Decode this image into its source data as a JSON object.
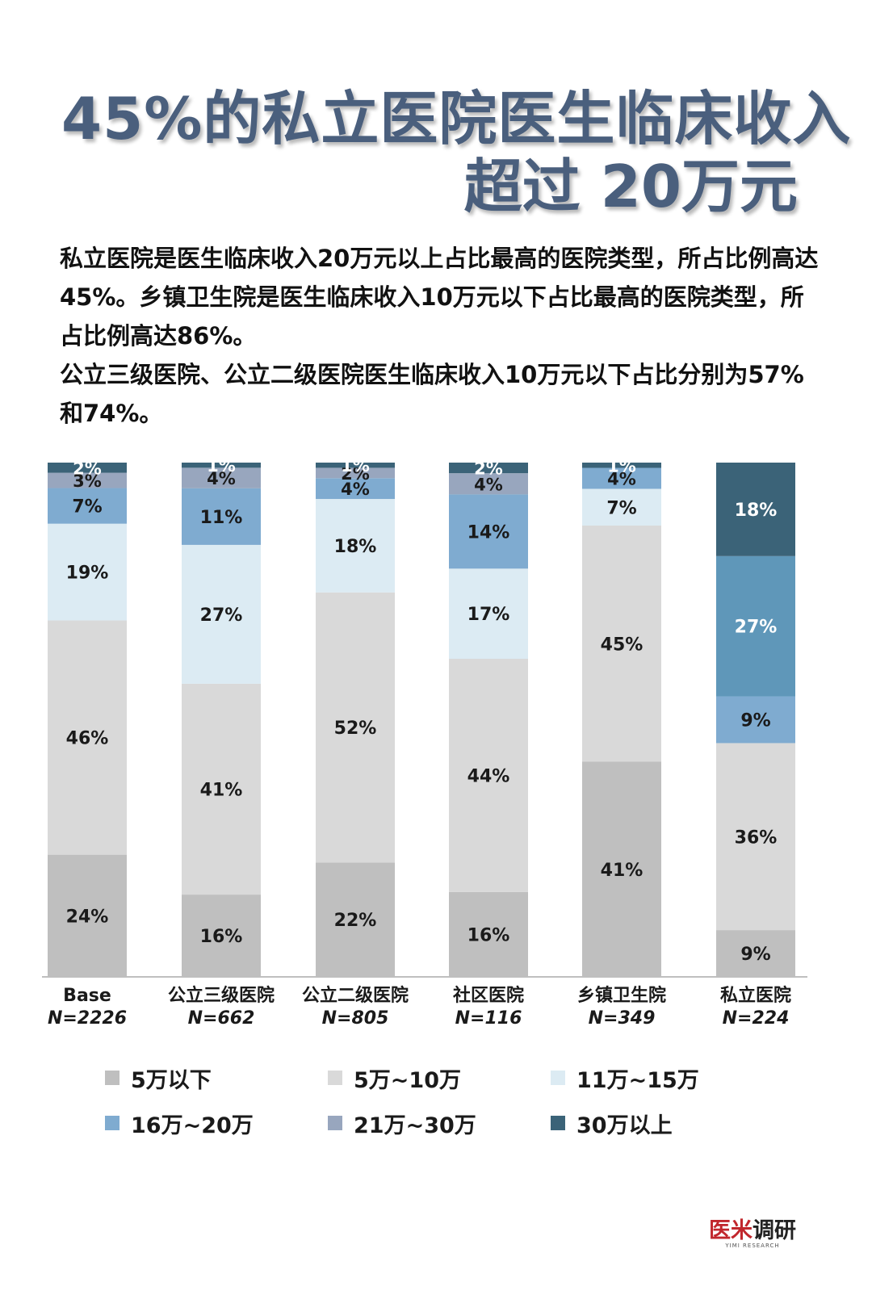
{
  "title": {
    "line1": "45%的私立医院医生临床收入",
    "line2": "超过 20万元"
  },
  "description": {
    "p1": "私立医院是医生临床收入20万元以上占比最高的医院类型，所占比例高达45%。乡镇卫生院是医生临床收入10万元以下占比最高的医院类型，所占比例高达86%。",
    "p2": "公立三级医院、公立二级医院医生临床收入10万元以下占比分别为57%和74%。"
  },
  "chart_data": {
    "type": "bar",
    "stacked": true,
    "percent": true,
    "categories": [
      "Base",
      "公立三级医院",
      "公立二级医院",
      "社区医院",
      "乡镇卫生院",
      "私立医院"
    ],
    "sample_sizes": [
      "N=2226",
      "N=662",
      "N=805",
      "N=116",
      "N=349",
      "N=224"
    ],
    "series": [
      {
        "name": "5万以下",
        "color": "#bfbfbf",
        "values": [
          24,
          16,
          22,
          16,
          41,
          9
        ]
      },
      {
        "name": "5万~10万",
        "color": "#d9d9d9",
        "values": [
          46,
          41,
          52,
          44,
          45,
          36
        ]
      },
      {
        "name": "11万~15万",
        "color": "#dcebf3",
        "values": [
          19,
          27,
          18,
          17,
          7,
          0
        ]
      },
      {
        "name": "16万~20万",
        "color": "#7fabd0",
        "values": [
          7,
          11,
          4,
          14,
          4,
          9
        ]
      },
      {
        "name": "21万~30万",
        "color": "#98a6be",
        "values": [
          3,
          4,
          2,
          4,
          0,
          27
        ]
      },
      {
        "name": "30万以上",
        "color": "#3b6378",
        "values": [
          2,
          1,
          1,
          2,
          1,
          18
        ]
      }
    ],
    "override_colors": {
      "私立医院": {
        "16万~20万": "#7fabd0",
        "21万~30万": "#5f97b9",
        "30万以上": "#3b6378"
      }
    },
    "ylim": [
      0,
      100
    ],
    "grid": false,
    "legend_position": "bottom"
  },
  "branding": {
    "logo_red": "医米",
    "logo_dark": "调研",
    "logo_en": "YIMI RESEARCH"
  }
}
